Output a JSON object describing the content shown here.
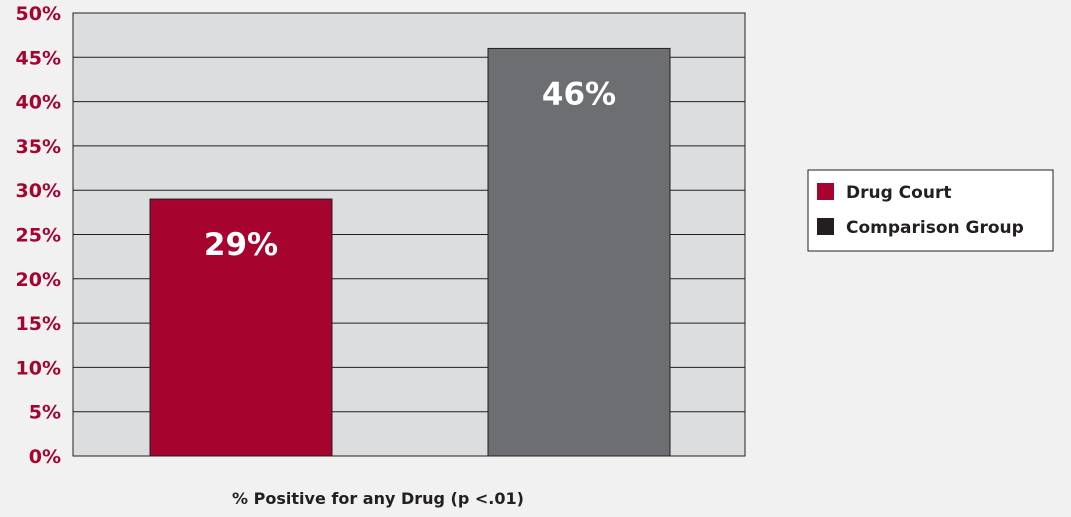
{
  "colors": {
    "background": "#f1f1f2",
    "plot_bg": "#dcdddf",
    "axis_text": "#a6032f",
    "gridline": "#231f20",
    "drug_court": "#a6032f",
    "comparison_group": "#6d6e71",
    "comparison_legend_swatch": "#231f20"
  },
  "chart_data": {
    "type": "bar",
    "categories": [
      "Drug Court",
      "Comparison Group"
    ],
    "values": [
      29,
      46
    ],
    "data_labels": [
      "29%",
      "46%"
    ],
    "xlabel": "% Positive for any Drug (p <.01)",
    "ylabel": "",
    "ylim": [
      0,
      50
    ],
    "yticks": [
      0,
      5,
      10,
      15,
      20,
      25,
      30,
      35,
      40,
      45,
      50
    ],
    "ytick_labels": [
      "0%",
      "5%",
      "10%",
      "15%",
      "20%",
      "25%",
      "30%",
      "35%",
      "40%",
      "45%",
      "50%"
    ],
    "grid": true,
    "legend": {
      "placement": "right",
      "entries": [
        "Drug Court",
        "Comparison Group"
      ]
    }
  }
}
